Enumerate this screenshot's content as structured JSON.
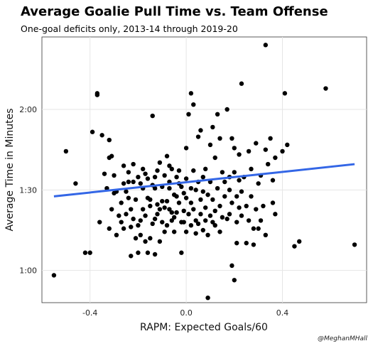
{
  "chart_data": {
    "type": "scatter",
    "title": "Average Goalie Pull Time vs. Team Offense",
    "subtitle": "One-goal deficits only, 2013-14 through 2019-20",
    "xlabel": "RAPM: Expected Goals/60",
    "ylabel": "Average Time in Minutes",
    "credit": "@MeghanMHall",
    "xlim": [
      -0.6,
      0.75
    ],
    "ylim": [
      0.8,
      2.45
    ],
    "x_ticks": [
      {
        "value": -0.4,
        "label": "-0.4"
      },
      {
        "value": 0.0,
        "label": "0.0"
      },
      {
        "value": 0.4,
        "label": "0.4"
      }
    ],
    "y_ticks": [
      {
        "value": 1.0,
        "label": "1:00"
      },
      {
        "value": 1.5,
        "label": "1:30"
      },
      {
        "value": 2.0,
        "label": "2:00"
      }
    ],
    "grid": true,
    "trend_line": {
      "x": [
        -0.55,
        0.7
      ],
      "y": [
        1.46,
        1.66
      ],
      "color": "#3366e6"
    },
    "point_color": "#000000",
    "points": [
      [
        -0.55,
        0.97
      ],
      [
        -0.5,
        1.74
      ],
      [
        -0.46,
        1.54
      ],
      [
        -0.42,
        1.11
      ],
      [
        -0.4,
        1.11
      ],
      [
        -0.39,
        1.86
      ],
      [
        -0.37,
        2.09
      ],
      [
        -0.37,
        2.1
      ],
      [
        -0.36,
        1.3
      ],
      [
        -0.35,
        1.84
      ],
      [
        -0.34,
        1.6
      ],
      [
        -0.33,
        1.51
      ],
      [
        -0.32,
        1.7
      ],
      [
        -0.32,
        1.81
      ],
      [
        -0.32,
        1.26
      ],
      [
        -0.31,
        1.38
      ],
      [
        -0.31,
        1.71
      ],
      [
        -0.3,
        1.48
      ],
      [
        -0.3,
        1.59
      ],
      [
        -0.29,
        1.49
      ],
      [
        -0.29,
        1.22
      ],
      [
        -0.28,
        1.34
      ],
      [
        -0.27,
        1.42
      ],
      [
        -0.27,
        1.3
      ],
      [
        -0.26,
        1.65
      ],
      [
        -0.26,
        1.54
      ],
      [
        -0.26,
        1.26
      ],
      [
        -0.25,
        1.35
      ],
      [
        -0.25,
        1.49
      ],
      [
        -0.24,
        1.61
      ],
      [
        -0.24,
        1.45
      ],
      [
        -0.24,
        1.55
      ],
      [
        -0.23,
        1.27
      ],
      [
        -0.23,
        1.38
      ],
      [
        -0.23,
        1.09
      ],
      [
        -0.22,
        1.66
      ],
      [
        -0.22,
        1.55
      ],
      [
        -0.22,
        1.32
      ],
      [
        -0.21,
        1.2
      ],
      [
        -0.21,
        1.44
      ],
      [
        -0.2,
        1.58
      ],
      [
        -0.2,
        1.28
      ],
      [
        -0.2,
        1.11
      ],
      [
        -0.19,
        1.31
      ],
      [
        -0.19,
        1.54
      ],
      [
        -0.19,
        1.22
      ],
      [
        -0.18,
        1.63
      ],
      [
        -0.18,
        1.38
      ],
      [
        -0.18,
        1.51
      ],
      [
        -0.17,
        1.6
      ],
      [
        -0.17,
        1.18
      ],
      [
        -0.17,
        1.34
      ],
      [
        -0.16,
        1.11
      ],
      [
        -0.16,
        1.57
      ],
      [
        -0.16,
        1.45
      ],
      [
        -0.15,
        1.44
      ],
      [
        -0.15,
        1.4
      ],
      [
        -0.15,
        1.2
      ],
      [
        -0.14,
        1.29
      ],
      [
        -0.14,
        1.53
      ],
      [
        -0.14,
        1.96
      ],
      [
        -0.13,
        1.51
      ],
      [
        -0.13,
        1.32
      ],
      [
        -0.13,
        1.58
      ],
      [
        -0.13,
        1.1
      ],
      [
        -0.12,
        1.41
      ],
      [
        -0.12,
        1.35
      ],
      [
        -0.12,
        1.62
      ],
      [
        -0.11,
        1.38
      ],
      [
        -0.11,
        1.67
      ],
      [
        -0.11,
        1.18
      ],
      [
        -0.1,
        1.43
      ],
      [
        -0.1,
        1.52
      ],
      [
        -0.1,
        1.3
      ],
      [
        -0.09,
        1.39
      ],
      [
        -0.09,
        1.24
      ],
      [
        -0.09,
        1.59
      ],
      [
        -0.08,
        1.28
      ],
      [
        -0.08,
        1.43
      ],
      [
        -0.08,
        1.71
      ],
      [
        -0.07,
        1.65
      ],
      [
        -0.07,
        1.55
      ],
      [
        -0.07,
        1.38
      ],
      [
        -0.07,
        1.51
      ],
      [
        -0.06,
        1.31
      ],
      [
        -0.06,
        1.36
      ],
      [
        -0.06,
        1.63
      ],
      [
        -0.05,
        1.47
      ],
      [
        -0.05,
        1.33
      ],
      [
        -0.05,
        1.24
      ],
      [
        -0.04,
        1.58
      ],
      [
        -0.04,
        1.46
      ],
      [
        -0.04,
        1.36
      ],
      [
        -0.03,
        1.54
      ],
      [
        -0.03,
        1.62
      ],
      [
        -0.03,
        1.42
      ],
      [
        -0.02,
        1.3
      ],
      [
        -0.02,
        1.52
      ],
      [
        -0.02,
        1.11
      ],
      [
        -0.01,
        1.48
      ],
      [
        -0.01,
        1.37
      ],
      [
        -0.01,
        1.3
      ],
      [
        0.0,
        1.76
      ],
      [
        0.0,
        1.57
      ],
      [
        0.0,
        1.24
      ],
      [
        0.0,
        1.45
      ],
      [
        0.01,
        1.97
      ],
      [
        0.01,
        1.35
      ],
      [
        0.02,
        2.1
      ],
      [
        0.02,
        1.42
      ],
      [
        0.02,
        1.51
      ],
      [
        0.02,
        1.28
      ],
      [
        0.03,
        2.03
      ],
      [
        0.03,
        1.62
      ],
      [
        0.03,
        1.38
      ],
      [
        0.04,
        1.5
      ],
      [
        0.04,
        1.23
      ],
      [
        0.04,
        1.31
      ],
      [
        0.05,
        1.83
      ],
      [
        0.05,
        1.55
      ],
      [
        0.05,
        1.29
      ],
      [
        0.06,
        1.87
      ],
      [
        0.06,
        1.44
      ],
      [
        0.06,
        1.35
      ],
      [
        0.07,
        1.58
      ],
      [
        0.07,
        1.25
      ],
      [
        0.07,
        1.49
      ],
      [
        0.08,
        1.63
      ],
      [
        0.08,
        1.31
      ],
      [
        0.08,
        1.39
      ],
      [
        0.09,
        0.83
      ],
      [
        0.09,
        1.47
      ],
      [
        0.09,
        1.22
      ],
      [
        0.1,
        1.78
      ],
      [
        0.1,
        1.55
      ],
      [
        0.1,
        1.34
      ],
      [
        0.11,
        1.89
      ],
      [
        0.11,
        1.44
      ],
      [
        0.11,
        1.3
      ],
      [
        0.12,
        1.7
      ],
      [
        0.12,
        1.28
      ],
      [
        0.12,
        1.37
      ],
      [
        0.13,
        1.97
      ],
      [
        0.13,
        1.51
      ],
      [
        0.14,
        1.82
      ],
      [
        0.14,
        1.4
      ],
      [
        0.14,
        1.24
      ],
      [
        0.15,
        1.61
      ],
      [
        0.15,
        1.33
      ],
      [
        0.16,
        1.55
      ],
      [
        0.16,
        1.46
      ],
      [
        0.17,
        2.0
      ],
      [
        0.17,
        1.32
      ],
      [
        0.18,
        1.35
      ],
      [
        0.18,
        1.58
      ],
      [
        0.18,
        1.5
      ],
      [
        0.19,
        1.82
      ],
      [
        0.19,
        1.42
      ],
      [
        0.19,
        1.03
      ],
      [
        0.2,
        0.94
      ],
      [
        0.2,
        1.76
      ],
      [
        0.2,
        1.61
      ],
      [
        0.21,
        1.3
      ],
      [
        0.21,
        1.46
      ],
      [
        0.21,
        1.17
      ],
      [
        0.22,
        1.56
      ],
      [
        0.22,
        1.39
      ],
      [
        0.22,
        1.72
      ],
      [
        0.23,
        1.34
      ],
      [
        0.23,
        2.16
      ],
      [
        0.23,
        1.49
      ],
      [
        0.24,
        1.58
      ],
      [
        0.25,
        1.17
      ],
      [
        0.25,
        1.4
      ],
      [
        0.26,
        1.31
      ],
      [
        0.26,
        1.74
      ],
      [
        0.27,
        1.46
      ],
      [
        0.27,
        1.63
      ],
      [
        0.28,
        1.16
      ],
      [
        0.28,
        1.26
      ],
      [
        0.29,
        1.38
      ],
      [
        0.29,
        1.79
      ],
      [
        0.3,
        1.54
      ],
      [
        0.3,
        1.26
      ],
      [
        0.31,
        1.31
      ],
      [
        0.31,
        1.59
      ],
      [
        0.32,
        1.4
      ],
      [
        0.33,
        2.4
      ],
      [
        0.33,
        1.75
      ],
      [
        0.33,
        1.22
      ],
      [
        0.34,
        1.66
      ],
      [
        0.35,
        1.82
      ],
      [
        0.36,
        1.56
      ],
      [
        0.36,
        1.42
      ],
      [
        0.37,
        1.7
      ],
      [
        0.37,
        1.35
      ],
      [
        0.4,
        1.74
      ],
      [
        0.41,
        2.1
      ],
      [
        0.42,
        1.78
      ],
      [
        0.45,
        1.15
      ],
      [
        0.47,
        1.18
      ],
      [
        0.58,
        2.13
      ],
      [
        0.7,
        1.16
      ]
    ]
  }
}
